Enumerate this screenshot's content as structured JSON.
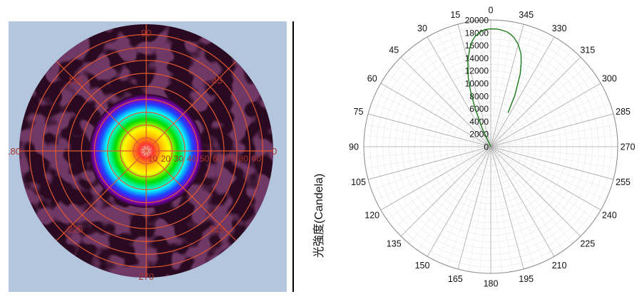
{
  "chart_data": [
    {
      "type": "heatmap",
      "subtype": "polar-intensity-map",
      "title": "",
      "colorbar_label": "光強度(Candela)",
      "angle_labels": [
        "0",
        "45",
        "90",
        "135",
        "180",
        "225",
        "270",
        "315"
      ],
      "radial_labels": [
        "10",
        "20",
        "30",
        "40",
        "50",
        "60",
        "70",
        "80",
        "90"
      ],
      "rmax": 90,
      "colormap": [
        "#ffffff",
        "#ff3030",
        "#ffc000",
        "#ffff00",
        "#00dd00",
        "#00ffff",
        "#2040ff",
        "#8000c0",
        "#2a0a20"
      ],
      "background_color": "#b4c6de",
      "grid_color": "#e05530"
    },
    {
      "type": "line",
      "subtype": "polar",
      "title": "",
      "angle_labels": [
        "0",
        "15",
        "30",
        "45",
        "60",
        "75",
        "90",
        "105",
        "120",
        "135",
        "150",
        "165",
        "180",
        "195",
        "210",
        "225",
        "240",
        "255",
        "270",
        "285",
        "300",
        "315",
        "330",
        "345"
      ],
      "radial_labels": [
        "0",
        "2000",
        "4000",
        "6000",
        "8000",
        "10000",
        "12000",
        "14000",
        "16000",
        "18000",
        "20000"
      ],
      "rlim": [
        0,
        20000
      ],
      "series": [
        {
          "color": "#1a7a1a",
          "theta": [
            -27,
            -25,
            -22,
            -20,
            -18,
            -15,
            -12,
            -10,
            -8,
            -5,
            -3,
            0,
            3,
            5,
            8,
            10,
            12,
            15,
            18,
            20,
            22,
            25,
            27
          ],
          "r": [
            6000,
            9000,
            12400,
            14000,
            15400,
            16700,
            17600,
            18000,
            18300,
            18500,
            18600,
            18600,
            18500,
            18200,
            17600,
            16900,
            15900,
            14000,
            11500,
            9300,
            6800,
            3100,
            500
          ]
        }
      ]
    }
  ]
}
